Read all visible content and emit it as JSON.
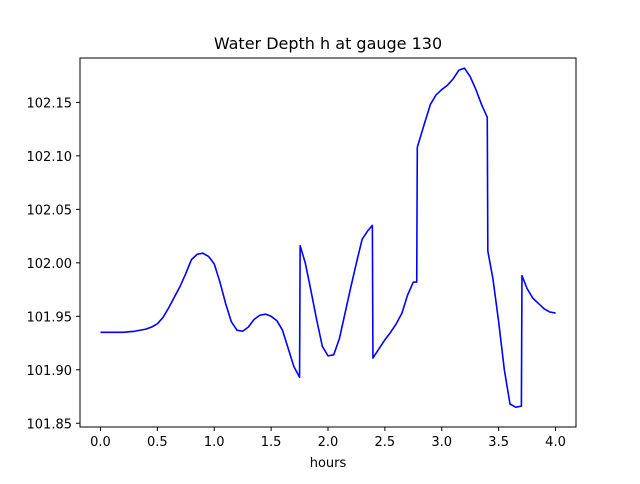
{
  "chart_data": {
    "type": "line",
    "title": "Water Depth h at gauge 130",
    "xlabel": "hours",
    "ylabel": "",
    "xlim": [
      -0.18,
      4.18
    ],
    "ylim": [
      101.8465,
      102.1915
    ],
    "xticks": [
      0.0,
      0.5,
      1.0,
      1.5,
      2.0,
      2.5,
      3.0,
      3.5,
      4.0
    ],
    "xtick_labels": [
      "0.0",
      "0.5",
      "1.0",
      "1.5",
      "2.0",
      "2.5",
      "3.0",
      "3.5",
      "4.0"
    ],
    "yticks": [
      101.85,
      101.9,
      101.95,
      102.0,
      102.05,
      102.1,
      102.15
    ],
    "ytick_labels": [
      "101.85",
      "101.90",
      "101.95",
      "102.00",
      "102.05",
      "102.10",
      "102.15"
    ],
    "grid": false,
    "series": [
      {
        "color": "#0000ff",
        "x": [
          0.0,
          0.1,
          0.2,
          0.3,
          0.4,
          0.45,
          0.5,
          0.55,
          0.6,
          0.65,
          0.7,
          0.75,
          0.8,
          0.85,
          0.9,
          0.95,
          1.0,
          1.05,
          1.1,
          1.15,
          1.2,
          1.25,
          1.3,
          1.35,
          1.4,
          1.45,
          1.5,
          1.55,
          1.6,
          1.65,
          1.7,
          1.75,
          1.755,
          1.8,
          1.85,
          1.9,
          1.95,
          2.0,
          2.05,
          2.1,
          2.15,
          2.2,
          2.25,
          2.3,
          2.35,
          2.39,
          2.395,
          2.45,
          2.5,
          2.55,
          2.6,
          2.65,
          2.7,
          2.75,
          2.78,
          2.785,
          2.85,
          2.9,
          2.95,
          3.0,
          3.05,
          3.1,
          3.15,
          3.2,
          3.25,
          3.3,
          3.35,
          3.4,
          3.405,
          3.45,
          3.5,
          3.55,
          3.6,
          3.65,
          3.7,
          3.705,
          3.75,
          3.8,
          3.85,
          3.9,
          3.95,
          4.0
        ],
        "y": [
          101.935,
          101.935,
          101.935,
          101.936,
          101.938,
          101.94,
          101.943,
          101.949,
          101.958,
          101.968,
          101.978,
          101.99,
          102.003,
          102.008,
          102.009,
          102.006,
          101.999,
          101.982,
          101.962,
          101.945,
          101.937,
          101.936,
          101.94,
          101.947,
          101.951,
          101.952,
          101.95,
          101.946,
          101.937,
          101.92,
          101.903,
          101.893,
          102.016,
          102.0,
          101.974,
          101.947,
          101.922,
          101.913,
          101.914,
          101.929,
          101.953,
          101.977,
          102.0,
          102.022,
          102.03,
          102.035,
          101.911,
          101.92,
          101.928,
          101.935,
          101.943,
          101.953,
          101.97,
          101.982,
          101.982,
          102.108,
          102.131,
          102.148,
          102.157,
          102.162,
          102.166,
          102.172,
          102.18,
          102.182,
          102.174,
          102.162,
          102.148,
          102.136,
          102.011,
          101.985,
          101.945,
          101.9,
          101.868,
          101.865,
          101.866,
          101.988,
          101.976,
          101.967,
          101.962,
          101.957,
          101.954,
          101.953
        ]
      }
    ]
  }
}
